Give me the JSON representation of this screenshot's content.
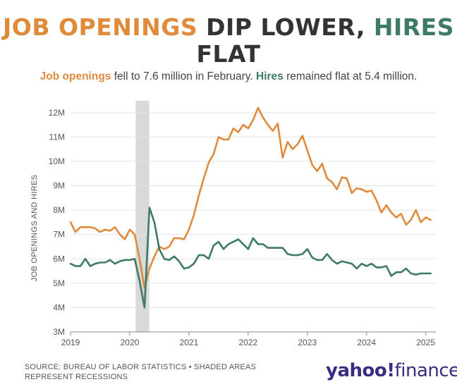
{
  "title": {
    "part1": "JOB OPENINGS",
    "part2": " DIP LOWER, ",
    "part3": "HIRES",
    "part4": "FLAT"
  },
  "subtitle": {
    "lead1": "Job openings",
    "rest1": " fell to 7.6 million in February. ",
    "lead2": "Hires",
    "rest2": " remained flat at 5.4 million."
  },
  "colors": {
    "openings": "#e08a3c",
    "hires": "#3e7a66",
    "recession": "#d9d9d9",
    "grid": "#e3e3e3",
    "axis": "#555555"
  },
  "footer": {
    "source_line1": "SOURCE: BUREAU OF LABOR STATISTICS • SHADED AREAS",
    "source_line2": "REPRESENT RECESSIONS",
    "logo_main": "yahoo",
    "logo_bang": "!",
    "logo_sub": "finance"
  },
  "chart_data": {
    "type": "line",
    "ylabel": "JOB OPENINGS AND HIRES",
    "xlabel": "",
    "ylim": [
      3,
      12.4
    ],
    "yticks": [
      3,
      4,
      5,
      6,
      7,
      8,
      9,
      10,
      11,
      12
    ],
    "ytick_labels": [
      "3M",
      "4M",
      "5M",
      "6M",
      "7M",
      "8M",
      "9M",
      "10M",
      "11M",
      "12M"
    ],
    "xlim": [
      2019.0,
      2025.17
    ],
    "xticks": [
      2019,
      2020,
      2021,
      2022,
      2023,
      2024,
      2025
    ],
    "xtick_labels": [
      "2019",
      "2020",
      "2021",
      "2022",
      "2023",
      "2024",
      "2025"
    ],
    "grid": true,
    "legend": "none",
    "recessions": [
      {
        "start": 2020.1,
        "end": 2020.33
      }
    ],
    "x_start": 2019.0,
    "x_step_months": 1,
    "series": [
      {
        "name": "Job openings",
        "color": "#e08a3c",
        "values": [
          7.5,
          7.1,
          7.3,
          7.3,
          7.3,
          7.25,
          7.1,
          7.2,
          7.15,
          7.3,
          7.0,
          6.8,
          7.2,
          7.0,
          6.0,
          4.8,
          5.6,
          6.1,
          6.5,
          6.4,
          6.5,
          6.85,
          6.85,
          6.8,
          7.2,
          7.8,
          8.6,
          9.3,
          9.95,
          10.3,
          11.0,
          10.9,
          10.9,
          11.35,
          11.2,
          11.5,
          11.35,
          11.7,
          12.2,
          11.8,
          11.5,
          11.25,
          11.55,
          10.15,
          10.8,
          10.5,
          10.7,
          11.05,
          10.45,
          9.85,
          9.6,
          9.9,
          9.3,
          9.15,
          8.85,
          9.35,
          9.3,
          8.7,
          8.9,
          8.85,
          8.75,
          8.8,
          8.4,
          7.9,
          8.2,
          7.9,
          7.7,
          7.85,
          7.4,
          7.6,
          8.0,
          7.5,
          7.7,
          7.6
        ]
      },
      {
        "name": "Hires",
        "color": "#3e7a66",
        "values": [
          5.8,
          5.7,
          5.7,
          6.0,
          5.7,
          5.8,
          5.85,
          5.85,
          5.95,
          5.8,
          5.9,
          5.95,
          5.95,
          6.0,
          5.1,
          4.0,
          8.1,
          7.5,
          6.4,
          6.0,
          5.95,
          6.1,
          5.9,
          5.6,
          5.65,
          5.8,
          6.15,
          6.15,
          6.0,
          6.55,
          6.7,
          6.4,
          6.6,
          6.7,
          6.8,
          6.6,
          6.4,
          6.85,
          6.6,
          6.6,
          6.45,
          6.45,
          6.45,
          6.45,
          6.2,
          6.15,
          6.15,
          6.2,
          6.4,
          6.05,
          5.95,
          5.95,
          6.2,
          5.95,
          5.8,
          5.9,
          5.85,
          5.8,
          5.6,
          5.8,
          5.7,
          5.8,
          5.65,
          5.65,
          5.7,
          5.3,
          5.45,
          5.45,
          5.6,
          5.4,
          5.35,
          5.4,
          5.4,
          5.4
        ]
      }
    ]
  }
}
